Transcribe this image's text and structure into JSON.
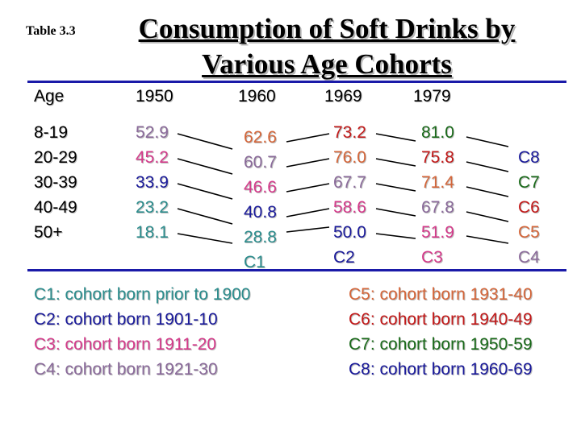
{
  "table_label": "Table 3.3",
  "title_line1": "Consumption of Soft Drinks by",
  "title_line2": "Various Age Cohorts",
  "headers": {
    "age": "Age",
    "y1950": "1950",
    "y1960": "1960",
    "y1969": "1969",
    "y1979": "1979"
  },
  "age_groups": [
    "8-19",
    "20-29",
    "30-39",
    "40-49",
    "50+"
  ],
  "values_1950": [
    "52.9",
    "45.2",
    "33.9",
    "23.2",
    "18.1"
  ],
  "values_1960": [
    "62.6",
    "60.7",
    "46.6",
    "40.8",
    "28.8",
    "C1"
  ],
  "values_1969": [
    "73.2",
    "76.0",
    "67.7",
    "58.6",
    "50.0",
    "C2"
  ],
  "values_1979": [
    "81.0",
    "75.8",
    "71.4",
    "67.8",
    "51.9",
    "C3"
  ],
  "cohort_tags": [
    "C8",
    "C7",
    "C6",
    "C5",
    "C4"
  ],
  "legend_left": [
    "C1: cohort born prior to 1900",
    "C2: cohort born 1901-10",
    "C3: cohort born 1911-20",
    "C4: cohort born 1921-30"
  ],
  "legend_right": [
    "C5: cohort born 1931-40",
    "C6: cohort born 1940-49",
    "C7: cohort born 1950-59",
    "C8: cohort born 1960-69"
  ],
  "colors": {
    "rule": "#1a1aa8",
    "c1": "#2b8c8c",
    "c2": "#1a1a9a",
    "c3": "#d43a8a",
    "c4": "#8a6a9a",
    "c5": "#d4663a",
    "c6": "#c21a1a",
    "c7": "#1a6a1a",
    "c8": "#1a1a9a"
  }
}
